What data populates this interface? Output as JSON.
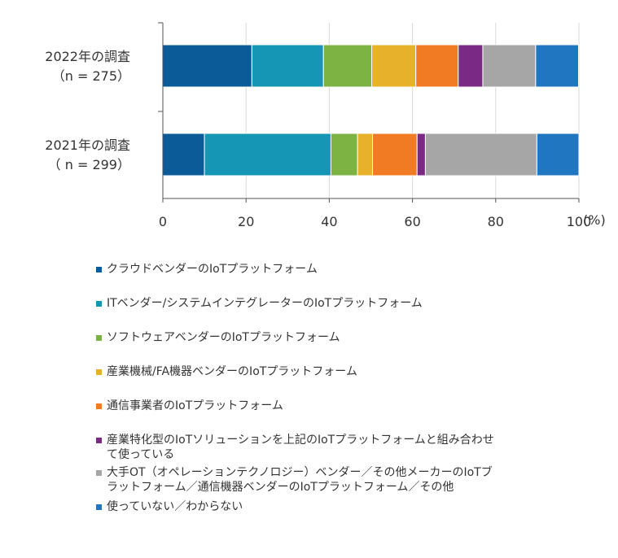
{
  "chart_data": {
    "type": "bar",
    "orientation": "horizontal",
    "stacked": true,
    "categories": [
      [
        "2022年の調査",
        "（n = 275）"
      ],
      [
        "2021年の調査",
        "（ n = 299）"
      ]
    ],
    "xlim": [
      0,
      100
    ],
    "xticks": [
      "0",
      "20",
      "40",
      "60",
      "80",
      "100"
    ],
    "unit_label": "(%)",
    "grid": true,
    "legend_position": "bottom",
    "series": [
      {
        "name": "クラウドベンダーのIoTプラットフォーム",
        "color": "#0b5b98",
        "values": [
          21.4,
          10.0
        ]
      },
      {
        "name": "ITベンダー/システムインテグレーターのIoTプラットフォーム",
        "color": "#1596b5",
        "values": [
          17.2,
          30.4
        ]
      },
      {
        "name": "ソフトウェアベンダーのIoTプラットフォーム",
        "color": "#7cb342",
        "values": [
          11.6,
          6.4
        ]
      },
      {
        "name": "産業機械/FA機器ベンダーのIoTプラットフォーム",
        "color": "#e8b12a",
        "values": [
          10.6,
          3.6
        ]
      },
      {
        "name": "通信事業者のIoTプラットフォーム",
        "color": "#f07b22",
        "values": [
          10.2,
          10.7
        ]
      },
      {
        "name": "産業特化型のIoTソリューションを上記のIoTプラットフォームと組み合わせて使っている",
        "color": "#7b2a84",
        "values": [
          5.9,
          2.0
        ]
      },
      {
        "name": "大手OT（オペレーションテクノロジー）ベンダー／その他メーカーのIoTプラットフォーム／通信機器ベンダーのIoTプラットフォーム／その他",
        "color": "#a6a6a6",
        "values": [
          12.7,
          26.8
        ]
      },
      {
        "name": "使っていない／わからない",
        "color": "#2176c1",
        "values": [
          10.3,
          10.1
        ]
      }
    ]
  },
  "legend": {
    "lines": [
      [
        "クラウドベンダーのIoTプラットフォーム"
      ],
      [
        "ITベンダー/システムインテグレーターのIoTプラットフォーム"
      ],
      [
        "ソフトウェアベンダーのIoTプラットフォーム"
      ],
      [
        "産業機械/FA機器ベンダーのIoTプラットフォーム"
      ],
      [
        "通信事業者のIoTプラットフォーム"
      ],
      [
        "産業特化型のIoTソリューションを上記のIoTプラットフォームと組み合わせ",
        "て使っている"
      ],
      [
        "大手OT（オペレーションテクノロジー）ベンダー／その他メーカーのIoTブ",
        "ラットフォーム／通信機器ベンダーのIoTプラットフォーム／その他"
      ],
      [
        "使っていない／わからない"
      ]
    ]
  }
}
